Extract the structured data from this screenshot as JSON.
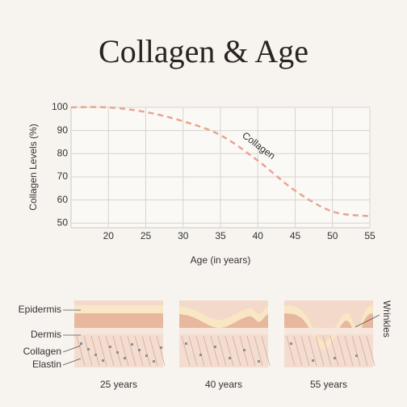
{
  "chart_data": {
    "type": "line",
    "title": "Collagen & Age",
    "x_label": "Age (in years)",
    "y_label": "Collagen Levels (%)",
    "x": [
      15,
      20,
      25,
      30,
      35,
      40,
      45,
      50,
      55
    ],
    "series": [
      {
        "name": "Collagen",
        "color": "#e8a58f",
        "values": [
          100,
          100,
          98,
          94,
          88,
          77,
          64,
          55,
          53
        ]
      }
    ],
    "xlim": [
      15,
      55
    ],
    "xticks": [
      20,
      25,
      30,
      35,
      40,
      45,
      50,
      55
    ],
    "ylim": [
      48,
      100
    ],
    "yticks": [
      50,
      60,
      70,
      80,
      90,
      100
    ],
    "grid": true,
    "dashed": true
  },
  "skin_diagram": {
    "layers": [
      "Epidermis",
      "Dermis",
      "Collagen",
      "Elastin"
    ],
    "wrinkle_label": "Wrinkles",
    "panels": [
      "25 years",
      "40 years",
      "55 years"
    ]
  }
}
